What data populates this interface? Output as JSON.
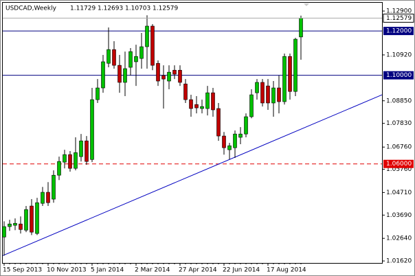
{
  "chart_data": {
    "type": "candlestick",
    "title": "USDCAD,Weekly",
    "categories": [
      "15 Sep 2013",
      null,
      null,
      null,
      null,
      null,
      null,
      null,
      "10 Nov 2013",
      null,
      null,
      null,
      null,
      null,
      null,
      null,
      "5 Jan 2014",
      null,
      null,
      null,
      null,
      null,
      null,
      null,
      "2 Mar 2014",
      null,
      null,
      null,
      null,
      null,
      null,
      null,
      "27 Apr 2014",
      null,
      null,
      null,
      null,
      null,
      null,
      null,
      "22 Jun 2014",
      null,
      null,
      null,
      null,
      null,
      null,
      null,
      "17 Aug 2014",
      null,
      null,
      null,
      null,
      null,
      null
    ],
    "open": [
      1.027,
      1.0317,
      1.0323,
      1.0329,
      1.0301,
      1.041,
      1.0286,
      1.0422,
      1.0472,
      1.0441,
      1.0549,
      1.0608,
      1.0642,
      1.058,
      1.0633,
      1.0704,
      1.062,
      1.089,
      1.0943,
      1.1054,
      1.1116,
      1.1045,
      1.0968,
      1.1036,
      1.1061,
      1.1076,
      1.1129,
      1.1222,
      1.1054,
      1.0999,
      1.0974,
      1.1023,
      1.1023,
      1.0961,
      1.089,
      1.0868,
      1.085,
      1.085,
      1.0921,
      1.085,
      1.0726,
      1.0664,
      1.0673,
      1.072,
      1.0735,
      1.0813,
      1.0921,
      1.0968,
      1.0952,
      1.0875,
      1.0943,
      1.0881,
      1.1085,
      1.0927,
      1.11729
    ],
    "high": [
      1.0341,
      1.0348,
      1.0354,
      1.0363,
      1.041,
      1.0441,
      1.0447,
      1.0496,
      1.0518,
      1.0571,
      1.0633,
      1.0664,
      1.0658,
      1.072,
      1.0735,
      1.0726,
      1.0943,
      1.0983,
      1.1092,
      1.1216,
      1.1154,
      1.1092,
      1.1107,
      1.1123,
      1.1138,
      1.1191,
      1.1271,
      1.1231,
      1.1067,
      1.1045,
      1.1045,
      1.1045,
      1.1045,
      1.0983,
      1.0912,
      1.0906,
      1.089,
      1.0952,
      1.0943,
      1.0875,
      1.0744,
      1.0695,
      1.0751,
      1.0766,
      1.0828,
      1.0937,
      1.0983,
      1.0983,
      1.0983,
      1.0974,
      1.0999,
      1.1098,
      1.1098,
      1.1169,
      1.12693
    ],
    "low": [
      1.0186,
      1.0298,
      1.0301,
      1.0286,
      1.0292,
      1.0279,
      1.0279,
      1.041,
      1.041,
      1.0425,
      1.0527,
      1.058,
      1.0565,
      1.0571,
      1.0611,
      1.0596,
      1.0608,
      1.0875,
      1.0921,
      1.1036,
      1.103,
      1.0921,
      1.0906,
      1.0999,
      1.0952,
      1.103,
      1.103,
      1.1023,
      1.0952,
      1.085,
      1.0937,
      1.0983,
      1.0952,
      1.0875,
      1.0813,
      1.0828,
      1.0828,
      1.0819,
      1.0813,
      1.0704,
      1.0642,
      1.062,
      1.0627,
      1.0689,
      1.072,
      1.0806,
      1.089,
      1.0859,
      1.0844,
      1.0813,
      1.0828,
      1.0868,
      1.089,
      1.0906,
      1.10703
    ],
    "close": [
      1.0317,
      1.0329,
      1.0332,
      1.0304,
      1.0394,
      1.0292,
      1.0425,
      1.0472,
      1.0425,
      1.0549,
      1.0611,
      1.0642,
      1.058,
      1.0651,
      1.0704,
      1.0611,
      1.089,
      1.0943,
      1.1061,
      1.1116,
      1.1045,
      1.0968,
      1.103,
      1.1107,
      1.1085,
      1.1129,
      1.1222,
      1.1045,
      1.0974,
      1.0983,
      1.1014,
      1.1005,
      1.0968,
      1.089,
      1.085,
      1.0853,
      1.0859,
      1.0921,
      1.0844,
      1.0726,
      1.0673,
      1.0682,
      1.0735,
      1.0735,
      1.0813,
      1.0912,
      1.0968,
      1.0875,
      1.0875,
      1.0943,
      1.0881,
      1.1085,
      1.0927,
      1.1163,
      1.12579
    ],
    "up_color": "#00c000",
    "down_color": "#c00000",
    "ylim": [
      1.0153,
      1.1315
    ],
    "yticks": [
      {
        "value": 1.129,
        "label": "1.12900"
      },
      {
        "value": 1.1092,
        "label": "1.10920"
      },
      {
        "value": 1.0885,
        "label": "1.08850"
      },
      {
        "value": 1.0783,
        "label": "1.07830"
      },
      {
        "value": 1.0676,
        "label": "1.06760"
      },
      {
        "value": 1.0576,
        "label": "1.05760"
      },
      {
        "value": 1.0471,
        "label": "1.04710"
      },
      {
        "value": 1.0369,
        "label": "1.03690"
      },
      {
        "value": 1.0264,
        "label": "1.02640"
      },
      {
        "value": 1.0162,
        "label": "1.01620"
      }
    ],
    "levels": [
      {
        "value": 1.12,
        "label": "1.12000",
        "color": "#000080",
        "dashed": false
      },
      {
        "value": 1.1,
        "label": "1.10000",
        "color": "#000080",
        "dashed": false
      },
      {
        "value": 1.06,
        "label": "1.06000",
        "color": "#e00000",
        "dashed": true
      }
    ],
    "trendline": {
      "values": [
        1.0186,
        1.0912
      ],
      "color": "#0000c0"
    }
  }
}
